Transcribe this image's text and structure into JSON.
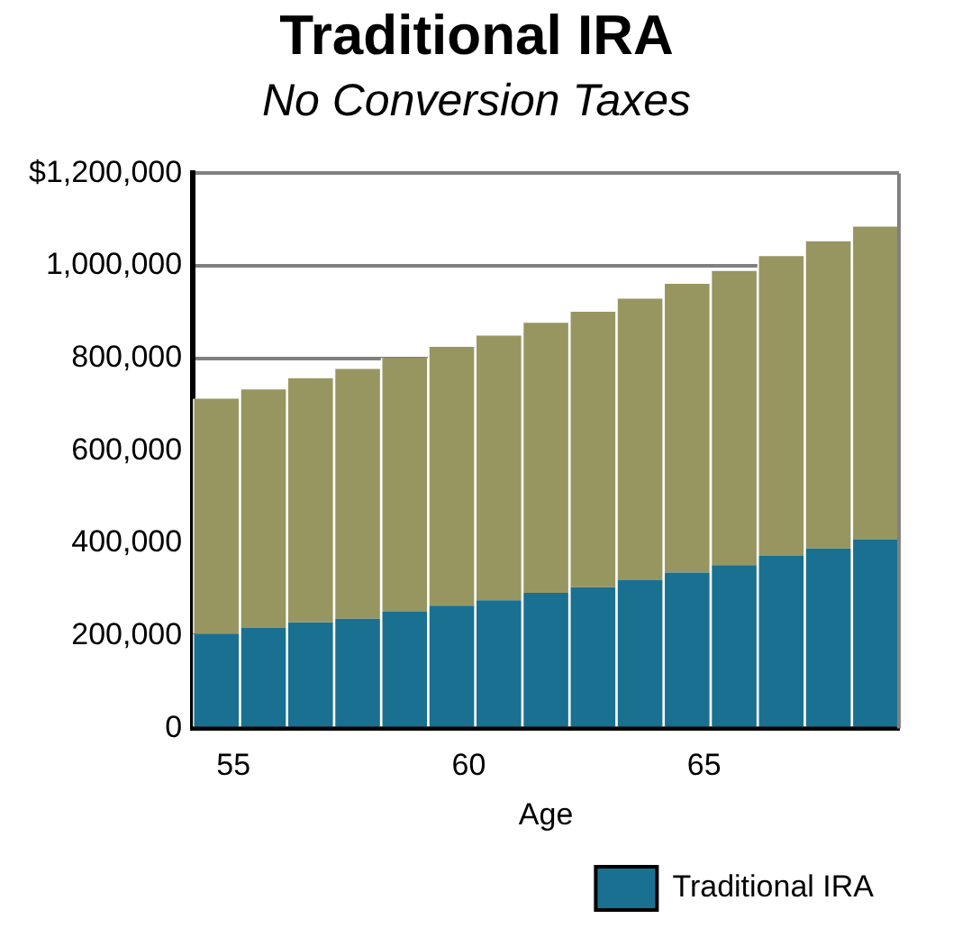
{
  "chart_data": {
    "type": "bar",
    "title": "Traditional IRA",
    "subtitle": "No Conversion Taxes",
    "xlabel": "Age",
    "categories": [
      "55",
      null,
      null,
      null,
      null,
      "60",
      null,
      null,
      null,
      null,
      "65",
      null,
      null,
      null,
      null
    ],
    "series": [
      {
        "name": "Traditional IRA",
        "color": "#1a7090",
        "values": [
          205000,
          217000,
          229000,
          237000,
          253000,
          265000,
          277000,
          293000,
          305000,
          321000,
          337000,
          353000,
          373000,
          389000,
          409000
        ]
      },
      {
        "color": "#989660",
        "values": [
          508000,
          516000,
          528000,
          540000,
          548000,
          560000,
          572000,
          584000,
          596000,
          608000,
          624000,
          636000,
          648000,
          664000,
          676000
        ]
      }
    ],
    "stacked": true,
    "ylim": [
      0,
      1200000
    ],
    "yticks": [
      0,
      {
        "value": 200000,
        "label": "200,000"
      },
      {
        "value": 400000,
        "label": "400,000"
      },
      {
        "value": 600000,
        "label": "600,000"
      },
      {
        "value": 800000,
        "label": "800,000"
      },
      {
        "value": 1000000,
        "label": "1,000,000"
      },
      {
        "value": 1200000,
        "label": "$1,200,000"
      }
    ],
    "grid": "y",
    "legend": "bottom right"
  }
}
